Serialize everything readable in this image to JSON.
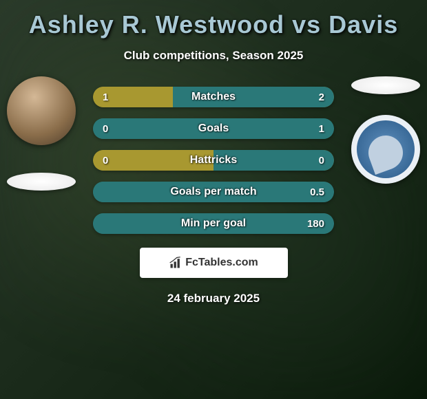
{
  "title": "Ashley R. Westwood vs Davis",
  "title_color": "#a8c8d4",
  "subtitle": "Club competitions, Season 2025",
  "date": "24 february 2025",
  "logo_text": "FcTables.com",
  "colors": {
    "bar_olive": "#a89830",
    "bar_teal": "#2a7878",
    "bar_bg_default": "#808080"
  },
  "stats": [
    {
      "label": "Matches",
      "left_val": "1",
      "right_val": "2",
      "left_pct": 33,
      "right_pct": 67,
      "left_color": "#a89830",
      "right_color": "#2a7878",
      "bg_color": "#a89830"
    },
    {
      "label": "Goals",
      "left_val": "0",
      "right_val": "1",
      "left_pct": 0,
      "right_pct": 100,
      "left_color": "#a89830",
      "right_color": "#2a7878",
      "bg_color": "#2a7878"
    },
    {
      "label": "Hattricks",
      "left_val": "0",
      "right_val": "0",
      "left_pct": 50,
      "right_pct": 50,
      "left_color": "#a89830",
      "right_color": "#2a7878",
      "bg_color": "#a89830"
    },
    {
      "label": "Goals per match",
      "left_val": "",
      "right_val": "0.5",
      "left_pct": 0,
      "right_pct": 100,
      "left_color": "#a89830",
      "right_color": "#2a7878",
      "bg_color": "#2a7878"
    },
    {
      "label": "Min per goal",
      "left_val": "",
      "right_val": "180",
      "left_pct": 0,
      "right_pct": 100,
      "left_color": "#a89830",
      "right_color": "#2a7878",
      "bg_color": "#2a7878"
    }
  ]
}
